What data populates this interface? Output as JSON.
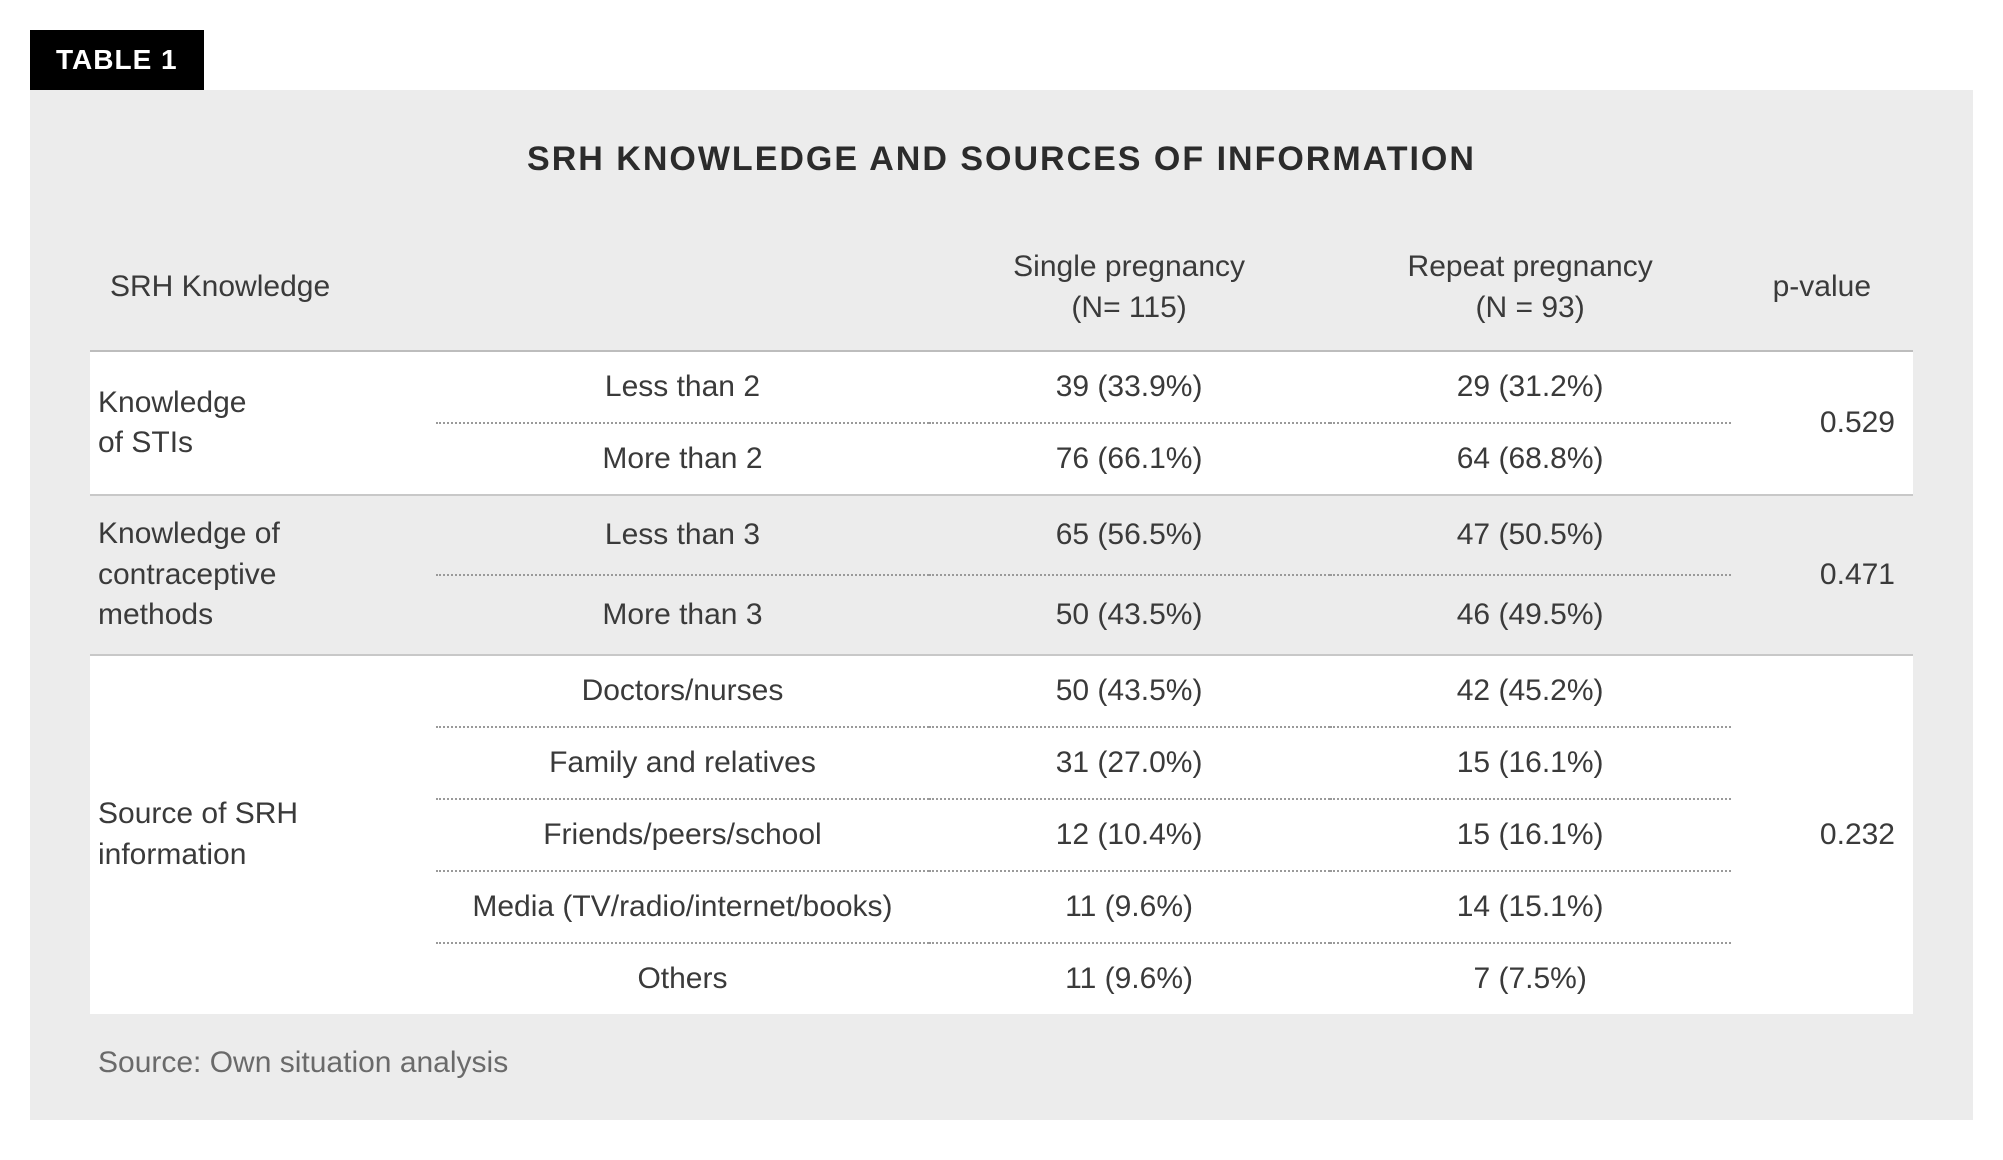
{
  "badge": "TABLE 1",
  "title": "SRH KNOWLEDGE AND SOURCES OF INFORMATION",
  "columns": {
    "c1": "SRH Knowledge",
    "c2": "",
    "c3_line1": "Single pregnancy",
    "c3_line2": "(N= 115)",
    "c4_line1": "Repeat pregnancy",
    "c4_line2": "(N = 93)",
    "c5": "p-value"
  },
  "groups": [
    {
      "label_line1": "Knowledge",
      "label_line2": "of STIs",
      "pvalue": "0.529",
      "band": "white",
      "rows": [
        {
          "cat": "Less than 2",
          "single": "39 (33.9%)",
          "repeat": "29 (31.2%)"
        },
        {
          "cat": "More than 2",
          "single": "76 (66.1%)",
          "repeat": "64 (68.8%)"
        }
      ]
    },
    {
      "label_line1": "Knowledge of",
      "label_line2": "contraceptive",
      "label_line3": "methods",
      "pvalue": "0.471",
      "band": "grey",
      "rows": [
        {
          "cat": "Less than 3",
          "single": "65 (56.5%)",
          "repeat": "47 (50.5%)"
        },
        {
          "cat": "More than 3",
          "single": "50 (43.5%)",
          "repeat": "46 (49.5%)"
        }
      ]
    },
    {
      "label_line1": "Source of SRH",
      "label_line2": "information",
      "pvalue": "0.232",
      "band": "white",
      "rows": [
        {
          "cat": "Doctors/nurses",
          "single": "50 (43.5%)",
          "repeat": "42 (45.2%)"
        },
        {
          "cat": "Family and relatives",
          "single": "31 (27.0%)",
          "repeat": "15 (16.1%)"
        },
        {
          "cat": "Friends/peers/school",
          "single": "12 (10.4%)",
          "repeat": "15 (16.1%)"
        },
        {
          "cat": "Media (TV/radio/internet/books)",
          "single": "11 (9.6%)",
          "repeat": "14 (15.1%)"
        },
        {
          "cat": "Others",
          "single": "11 (9.6%)",
          "repeat": "7 (7.5%)"
        }
      ]
    }
  ],
  "source": "Source: Own situation analysis",
  "colwidths": {
    "c1": "19%",
    "c2": "27%",
    "c3": "22%",
    "c4": "22%",
    "c5": "10%"
  },
  "colors": {
    "panel_bg": "#ececec",
    "band_white": "#ffffff",
    "band_grey": "#ececec",
    "text": "#3a3a3a",
    "muted": "#6a6a6a",
    "dotted": "#9a9a9a",
    "solid_sep": "#c8c8c8",
    "badge_bg": "#000000",
    "badge_fg": "#ffffff"
  },
  "font_sizes": {
    "title": 34,
    "cell": 30,
    "badge": 28,
    "source": 30
  }
}
